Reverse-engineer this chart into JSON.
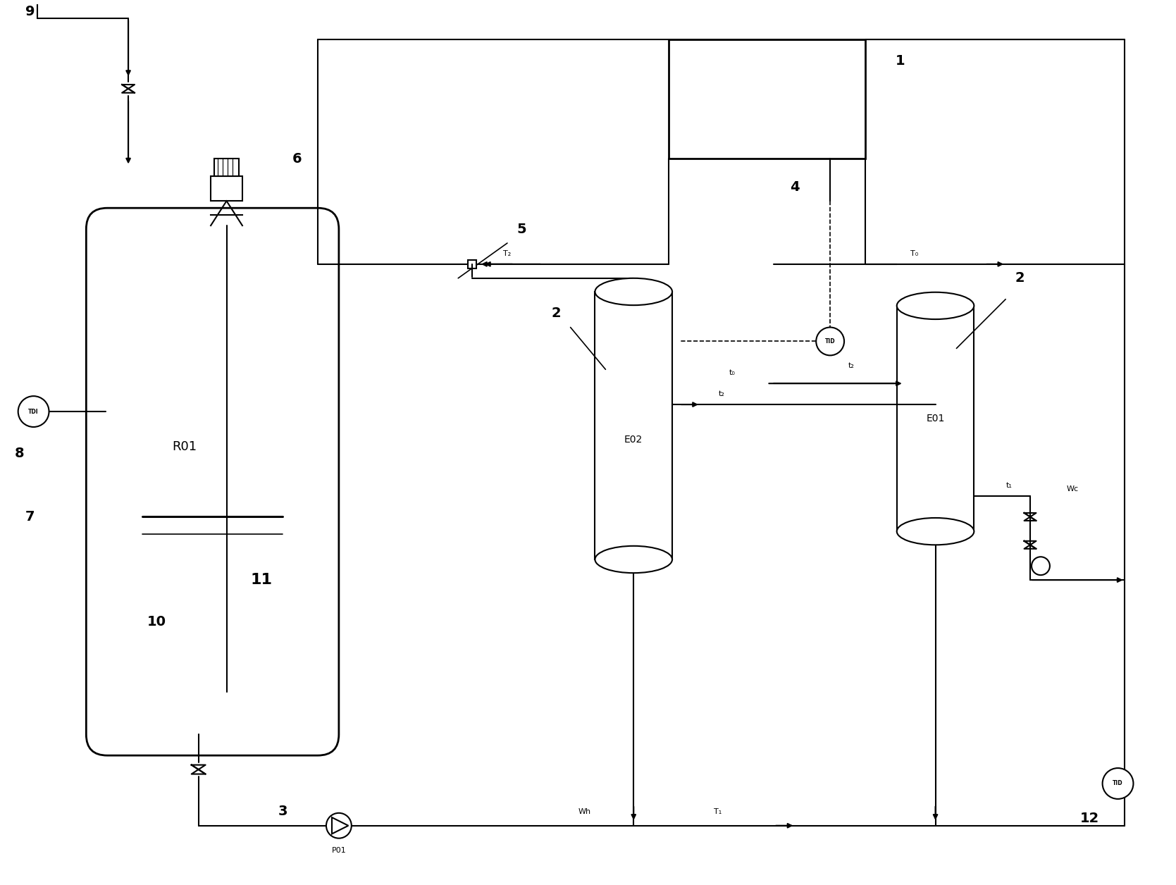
{
  "bg": "#ffffff",
  "lc": "#000000",
  "figsize": [
    16.69,
    12.56
  ],
  "dpi": 100,
  "xlim": [
    0,
    167
  ],
  "ylim": [
    0,
    125
  ]
}
